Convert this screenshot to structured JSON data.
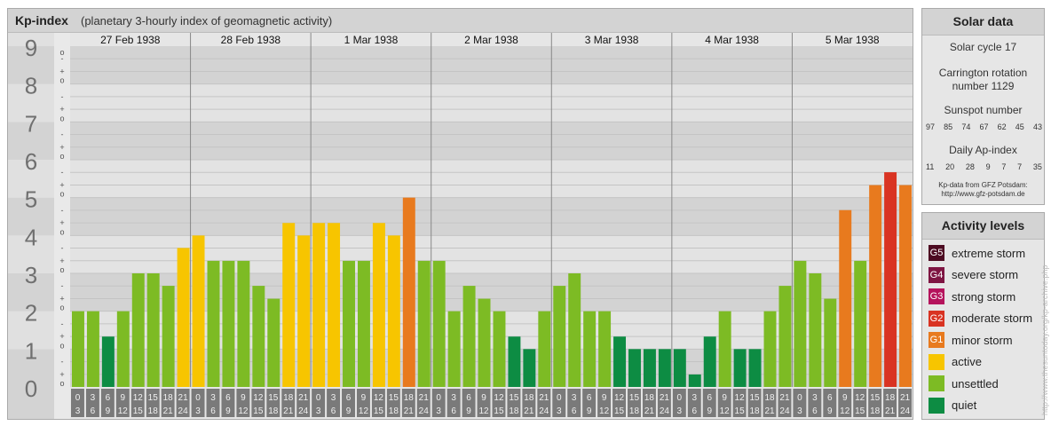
{
  "main": {
    "title": "Kp-index",
    "subtitle": "(planetary 3-hourly index of geomagnetic activity)"
  },
  "chart_data": {
    "type": "bar",
    "title": "Kp-index",
    "subtitle": "(planetary 3-hourly index of geomagnetic activity)",
    "ylim": [
      0,
      9
    ],
    "y_ticks": [
      "0",
      "1",
      "2",
      "3",
      "4",
      "5",
      "6",
      "7",
      "8",
      "9"
    ],
    "minor_tick_marks": [
      "o",
      "+",
      "-"
    ],
    "days": [
      "27 Feb 1938",
      "28 Feb 1938",
      "1 Mar 1938",
      "2 Mar 1938",
      "3 Mar 1938",
      "4 Mar 1938",
      "5 Mar 1938"
    ],
    "interval_start_labels": [
      "0",
      "3",
      "6",
      "9",
      "12",
      "15",
      "18",
      "21"
    ],
    "interval_end_labels": [
      "3",
      "6",
      "9",
      "12",
      "15",
      "18",
      "21",
      "24"
    ],
    "values": [
      2.0,
      2.0,
      1.33,
      2.0,
      3.0,
      3.0,
      2.67,
      3.67,
      4.0,
      3.33,
      3.33,
      3.33,
      2.67,
      2.33,
      4.33,
      4.0,
      4.33,
      4.33,
      3.33,
      3.33,
      4.33,
      4.0,
      5.0,
      3.33,
      3.33,
      2.0,
      2.67,
      2.33,
      2.0,
      1.33,
      1.0,
      2.0,
      2.67,
      3.0,
      2.0,
      2.0,
      1.33,
      1.0,
      1.0,
      1.0,
      1.0,
      0.33,
      1.33,
      2.0,
      1.0,
      1.0,
      2.0,
      2.67,
      3.33,
      3.0,
      2.33,
      4.67,
      3.33,
      5.33,
      5.67,
      5.33,
      3.67
    ],
    "grid": true
  },
  "colors": {
    "quiet": "#0d8c43",
    "unsettled": "#7dbb24",
    "active": "#f7c500",
    "G1": "#e87a1e",
    "G2": "#d93322",
    "G3": "#b5135c",
    "G4": "#7e1542",
    "G5": "#4d0b22",
    "band_dark": "#d3d3d3",
    "band_light": "#e3e3e3",
    "axis_label": "#707070",
    "axis_bg": "#d3d3d3",
    "hour_box": "#7a7a7a"
  },
  "solar": {
    "title": "Solar data",
    "cycle": "Solar cycle 17",
    "carrington_line1": "Carrington rotation",
    "carrington_line2": "number 1129",
    "sunspot_label": "Sunspot number",
    "sunspot_values": [
      "97",
      "85",
      "74",
      "67",
      "62",
      "45",
      "43"
    ],
    "ap_label": "Daily Ap-index",
    "ap_values": [
      "11",
      "20",
      "28",
      "9",
      "7",
      "7",
      "35"
    ],
    "source_line1": "Kp-data from GFZ Potsdam:",
    "source_line2": "http://www.gfz-potsdam.de"
  },
  "levels": {
    "title": "Activity levels",
    "items": [
      {
        "badge": "G5",
        "label": "extreme storm",
        "color": "#4d0b22"
      },
      {
        "badge": "G4",
        "label": "severe storm",
        "color": "#7e1542"
      },
      {
        "badge": "G3",
        "label": "strong storm",
        "color": "#b5135c"
      },
      {
        "badge": "G2",
        "label": "moderate storm",
        "color": "#d93322"
      },
      {
        "badge": "G1",
        "label": "minor storm",
        "color": "#e87a1e"
      },
      {
        "badge": "",
        "label": "active",
        "color": "#f7c500"
      },
      {
        "badge": "",
        "label": "unsettled",
        "color": "#7dbb24"
      },
      {
        "badge": "",
        "label": "quiet",
        "color": "#0d8c43"
      }
    ]
  },
  "credit": "http://www.thesuntoday.org/kp-archive.php"
}
